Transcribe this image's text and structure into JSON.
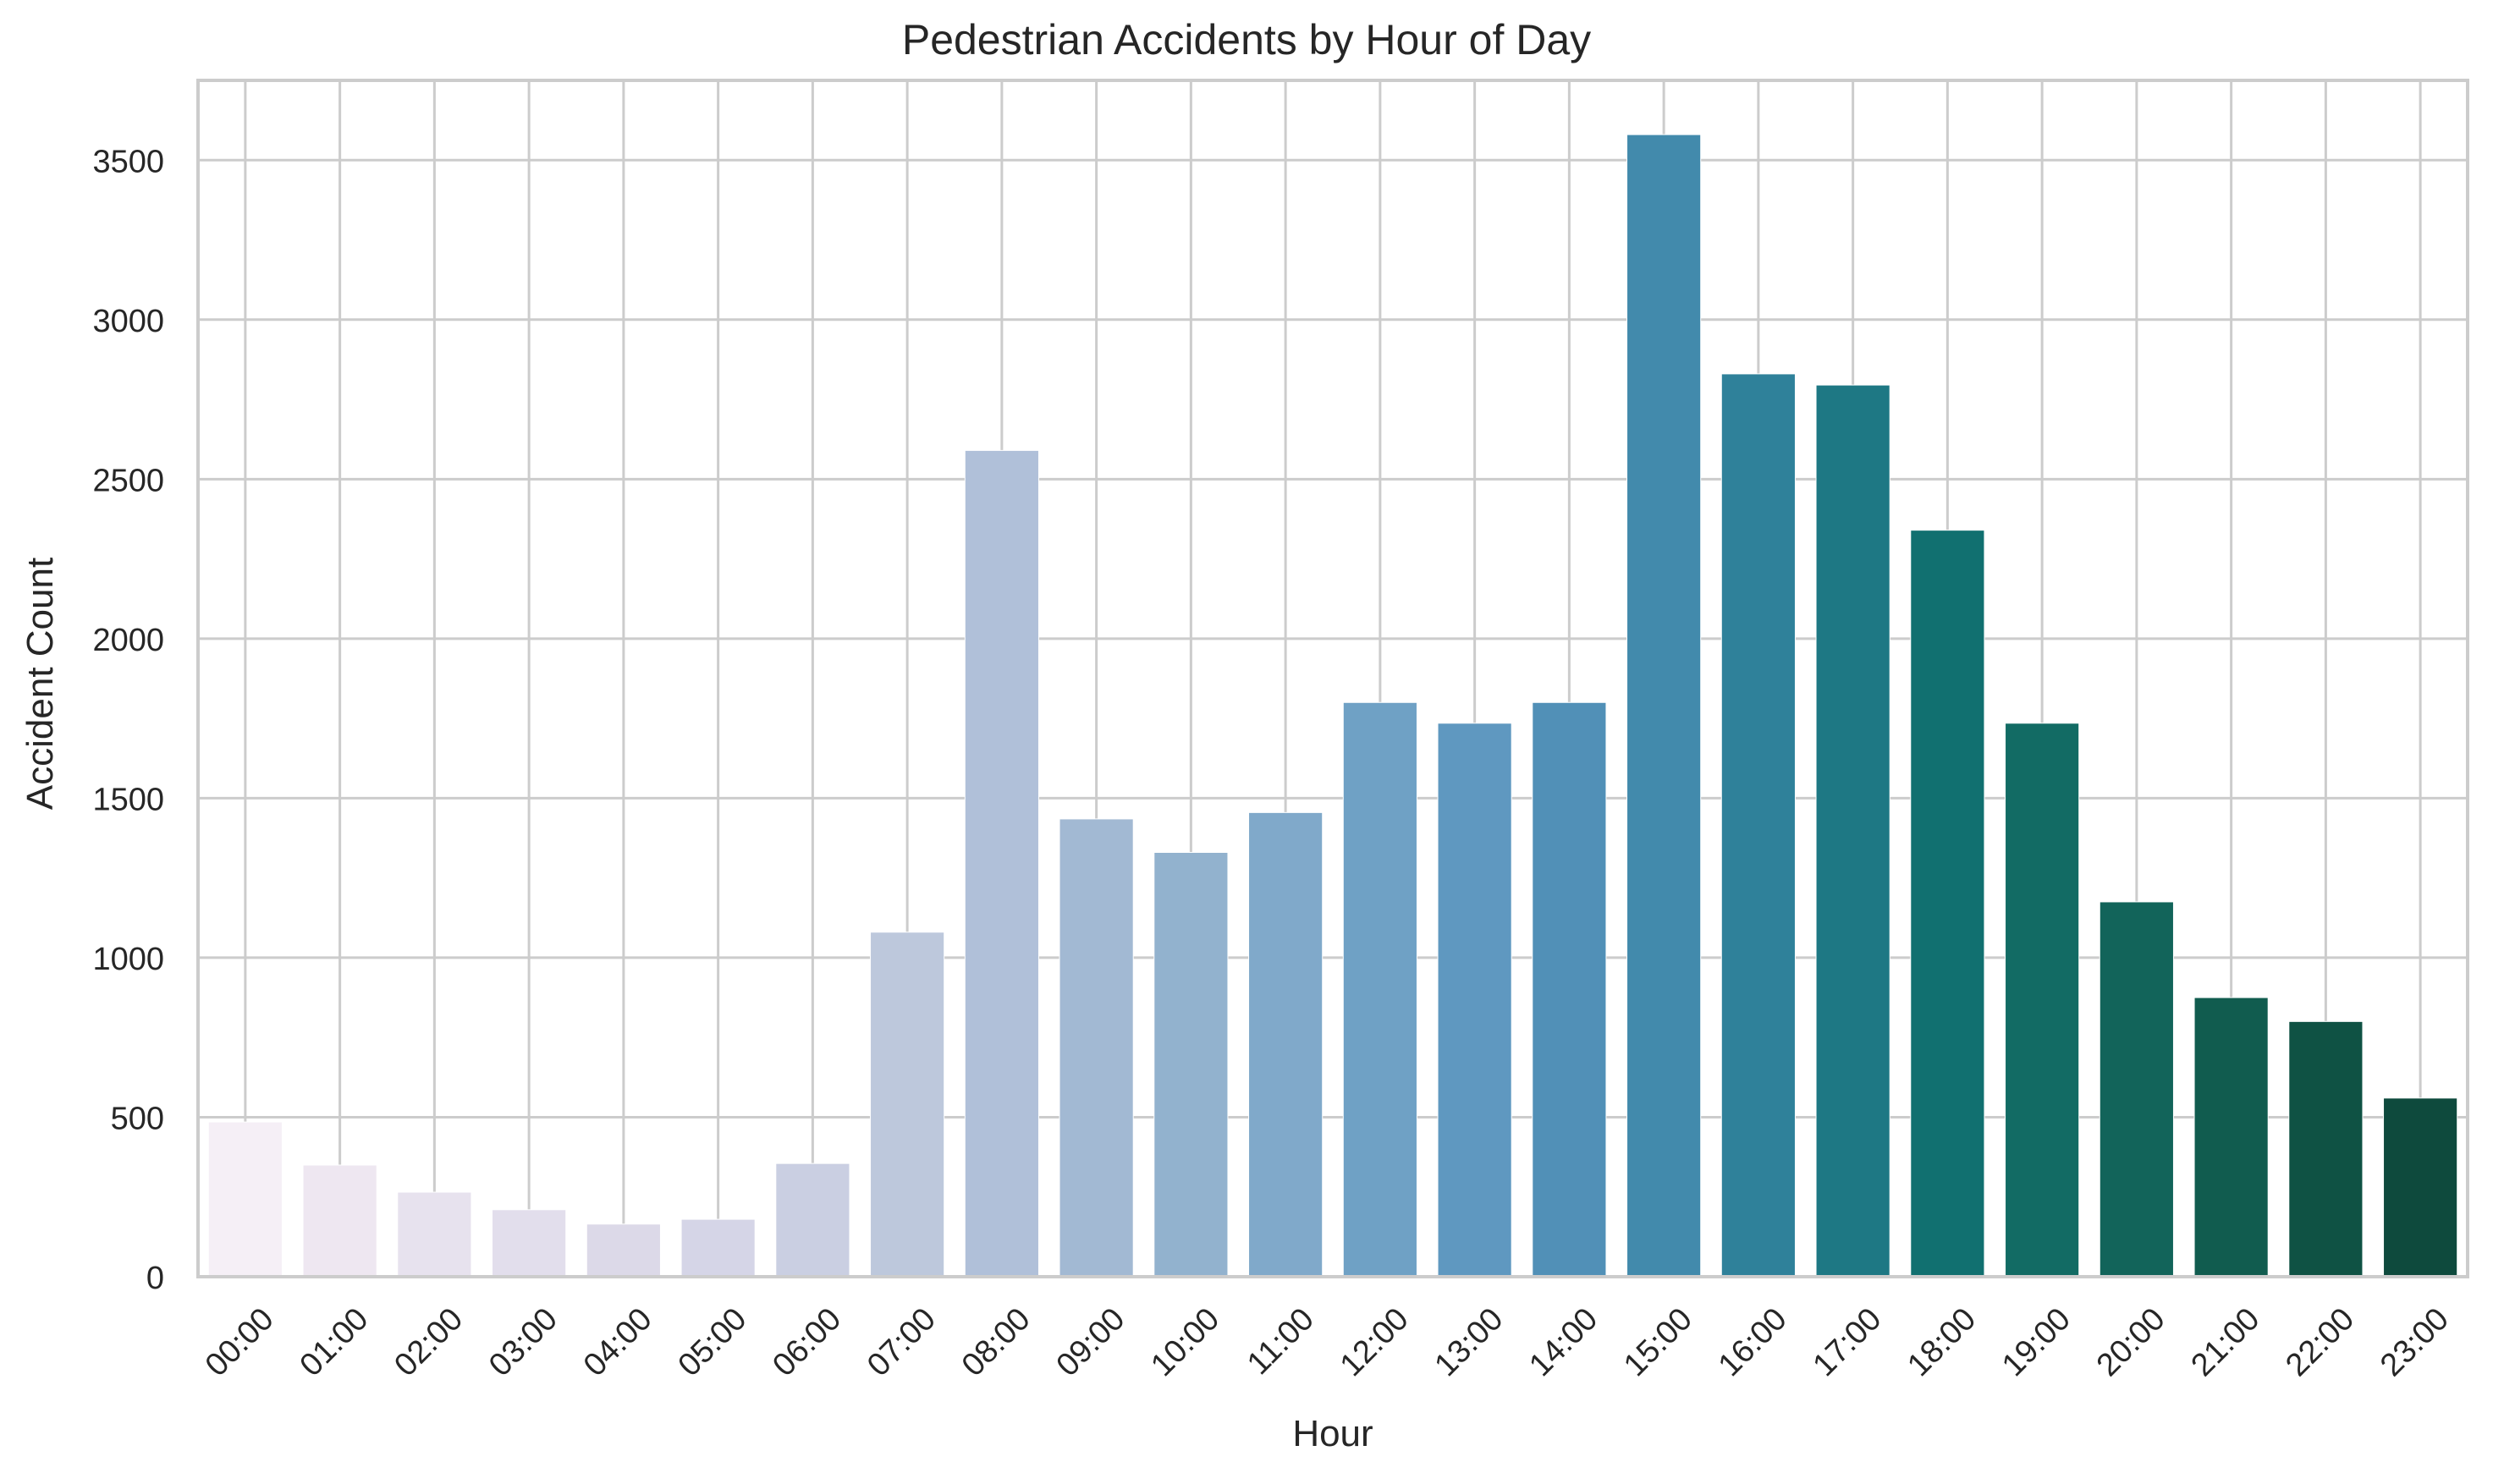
{
  "chart_data": {
    "type": "bar",
    "title": "Pedestrian Accidents by Hour of Day",
    "xlabel": "Hour",
    "ylabel": "Accident Count",
    "categories": [
      "00:00",
      "01:00",
      "02:00",
      "03:00",
      "04:00",
      "05:00",
      "06:00",
      "07:00",
      "08:00",
      "09:00",
      "10:00",
      "11:00",
      "12:00",
      "13:00",
      "14:00",
      "15:00",
      "16:00",
      "17:00",
      "18:00",
      "19:00",
      "20:00",
      "21:00",
      "22:00",
      "23:00"
    ],
    "values": [
      485,
      350,
      265,
      210,
      165,
      180,
      355,
      1080,
      2590,
      1435,
      1330,
      1455,
      1800,
      1735,
      1800,
      3580,
      2830,
      2795,
      2340,
      1735,
      1175,
      875,
      800,
      560
    ],
    "ylim": [
      0,
      3750
    ],
    "yticks": [
      0,
      500,
      1000,
      1500,
      2000,
      2500,
      3000,
      3500
    ],
    "grid": true,
    "colors": [
      "#f5eff6",
      "#eee7f1",
      "#e7e2ee",
      "#e2deec",
      "#dcd9e8",
      "#d5d5e7",
      "#cacfe2",
      "#bdc8dc",
      "#b0c0d9",
      "#a2b9d3",
      "#92b2ce",
      "#80a9ca",
      "#6fa1c5",
      "#5f98c0",
      "#5190b7",
      "#428aac",
      "#2f819a",
      "#1e7884",
      "#117070",
      "#126b64",
      "#12645a",
      "#115c4f",
      "#0f5244",
      "#0e4a3d"
    ]
  }
}
